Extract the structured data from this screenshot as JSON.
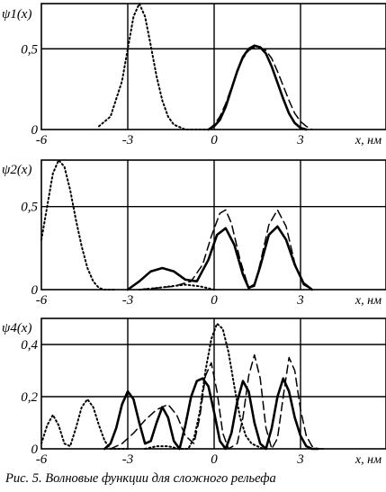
{
  "caption": "Рис. 5. Волновые функции для сложного рельефа",
  "chart_data": [
    {
      "type": "line",
      "ylabel": "ψ1(x)",
      "xlabel": "x, нм",
      "xlim": [
        -6,
        6
      ],
      "ylim": [
        0,
        0.78
      ],
      "xticks": [
        -6,
        -3,
        0,
        3
      ],
      "xtick_labels": [
        "-6",
        "-3",
        "0",
        "3"
      ],
      "yticks": [
        0,
        0.5
      ],
      "ytick_labels": [
        "0",
        "0,5"
      ],
      "grid": true,
      "series": [
        {
          "style": "dotted",
          "x": [
            -4.0,
            -3.6,
            -3.2,
            -3.0,
            -2.8,
            -2.6,
            -2.4,
            -2.2,
            -2.0,
            -1.8,
            -1.6,
            -1.4,
            -1.0,
            -0.6,
            -0.2
          ],
          "y": [
            0.02,
            0.08,
            0.3,
            0.5,
            0.7,
            0.78,
            0.7,
            0.52,
            0.33,
            0.18,
            0.08,
            0.03,
            0.0,
            0.0,
            0.0
          ]
        },
        {
          "style": "solid",
          "x": [
            -0.2,
            0.0,
            0.2,
            0.4,
            0.6,
            0.8,
            1.0,
            1.2,
            1.4,
            1.6,
            1.8,
            2.0,
            2.2,
            2.4,
            2.6,
            2.8,
            3.0,
            3.2
          ],
          "y": [
            0.0,
            0.02,
            0.06,
            0.14,
            0.25,
            0.36,
            0.45,
            0.5,
            0.52,
            0.51,
            0.47,
            0.39,
            0.29,
            0.19,
            0.1,
            0.04,
            0.01,
            0.0
          ]
        },
        {
          "style": "dashed",
          "x": [
            -0.2,
            0.0,
            0.2,
            0.4,
            0.6,
            0.8,
            1.0,
            1.2,
            1.4,
            1.6,
            1.8,
            2.0,
            2.2,
            2.4,
            2.6,
            2.8,
            3.0,
            3.2,
            3.4
          ],
          "y": [
            0.0,
            0.03,
            0.08,
            0.16,
            0.26,
            0.36,
            0.44,
            0.49,
            0.51,
            0.51,
            0.49,
            0.44,
            0.36,
            0.27,
            0.18,
            0.1,
            0.05,
            0.02,
            0.0
          ]
        }
      ]
    },
    {
      "type": "line",
      "ylabel": "ψ2(x)",
      "xlabel": "x, нм",
      "xlim": [
        -6,
        6
      ],
      "ylim": [
        0,
        0.78
      ],
      "xticks": [
        -6,
        -3,
        0,
        3
      ],
      "xtick_labels": [
        "-6",
        "-3",
        "0",
        "3"
      ],
      "yticks": [
        0,
        0.5
      ],
      "ytick_labels": [
        "0",
        "0,5"
      ],
      "grid": true,
      "series": [
        {
          "style": "dotted",
          "x": [
            -6.0,
            -5.8,
            -5.6,
            -5.4,
            -5.2,
            -5.0,
            -4.8,
            -4.6,
            -4.4,
            -4.2,
            -4.0,
            -3.8,
            -3.6,
            -3.4
          ],
          "y": [
            0.3,
            0.5,
            0.7,
            0.78,
            0.74,
            0.6,
            0.42,
            0.26,
            0.13,
            0.05,
            0.01,
            0.0,
            0.0,
            0.0
          ]
        },
        {
          "style": "solid",
          "x": [
            -3.0,
            -2.6,
            -2.2,
            -1.8,
            -1.4,
            -1.0,
            -0.6,
            -0.2,
            0.1,
            0.4,
            0.7,
            1.0,
            1.2,
            1.4,
            1.6,
            1.9,
            2.2,
            2.5,
            2.8,
            3.1,
            3.4
          ],
          "y": [
            0.0,
            0.05,
            0.11,
            0.13,
            0.11,
            0.06,
            0.05,
            0.18,
            0.33,
            0.37,
            0.27,
            0.09,
            0.01,
            0.03,
            0.14,
            0.33,
            0.38,
            0.3,
            0.15,
            0.04,
            0.0
          ]
        },
        {
          "style": "dashed",
          "x": [
            -2.6,
            -2.0,
            -1.4,
            -0.8,
            -0.4,
            -0.1,
            0.2,
            0.4,
            0.6,
            0.9,
            1.2,
            1.4,
            1.6,
            1.9,
            2.2,
            2.5,
            2.8,
            3.1,
            3.4
          ],
          "y": [
            0.0,
            0.01,
            0.02,
            0.05,
            0.15,
            0.32,
            0.46,
            0.48,
            0.4,
            0.18,
            0.01,
            0.02,
            0.16,
            0.39,
            0.48,
            0.38,
            0.16,
            0.03,
            0.0
          ]
        },
        {
          "style": "dotted",
          "x": [
            -2.6,
            -2.0,
            -1.5,
            -1.0,
            -0.5,
            0.0
          ],
          "y": [
            0.0,
            0.01,
            0.02,
            0.03,
            0.02,
            0.0
          ]
        }
      ]
    },
    {
      "type": "line",
      "ylabel": "ψ4(x)",
      "xlabel": "x, нм",
      "xlim": [
        -6,
        6
      ],
      "ylim": [
        0,
        0.5
      ],
      "xticks": [
        -6,
        -3,
        0,
        3
      ],
      "xtick_labels": [
        "-6",
        "-3",
        "0",
        "3"
      ],
      "yticks": [
        0,
        0.2,
        0.4
      ],
      "ytick_labels": [
        "0",
        "0,2",
        "0,4"
      ],
      "grid": true,
      "series": [
        {
          "style": "dotted",
          "x": [
            -6.0,
            -5.8,
            -5.6,
            -5.4,
            -5.2,
            -5.0,
            -4.8,
            -4.6,
            -4.4,
            -4.2,
            -4.0,
            -3.8,
            -3.6,
            -3.4,
            -3.2,
            -3.0
          ],
          "y": [
            0.02,
            0.09,
            0.13,
            0.09,
            0.02,
            0.01,
            0.08,
            0.16,
            0.19,
            0.16,
            0.09,
            0.03,
            0.0,
            0.0,
            0.0,
            0.0
          ]
        },
        {
          "style": "solid",
          "x": [
            -3.8,
            -3.6,
            -3.4,
            -3.2,
            -3.0,
            -2.8,
            -2.6,
            -2.4,
            -2.2,
            -2.0,
            -1.8,
            -1.6,
            -1.4,
            -1.2,
            -1.0,
            -0.8,
            -0.6,
            -0.4,
            -0.2,
            0.0,
            0.2,
            0.4,
            0.6,
            0.8,
            1.0,
            1.2,
            1.4,
            1.6,
            1.8,
            2.0,
            2.2,
            2.4,
            2.6,
            2.8,
            3.0,
            3.2,
            3.4,
            3.6
          ],
          "y": [
            0.0,
            0.02,
            0.08,
            0.17,
            0.22,
            0.19,
            0.1,
            0.02,
            0.03,
            0.1,
            0.16,
            0.12,
            0.03,
            0.0,
            0.09,
            0.2,
            0.26,
            0.27,
            0.24,
            0.14,
            0.03,
            0.0,
            0.06,
            0.18,
            0.26,
            0.22,
            0.1,
            0.02,
            0.0,
            0.08,
            0.2,
            0.27,
            0.22,
            0.12,
            0.05,
            0.01,
            0.0,
            0.0
          ]
        },
        {
          "style": "dashed",
          "x": [
            -3.6,
            -3.2,
            -2.8,
            -2.4,
            -2.0,
            -1.6,
            -1.3,
            -1.0,
            -0.7,
            -0.5,
            -0.3,
            -0.1,
            0.1,
            0.3,
            0.5,
            0.8,
            1.0,
            1.2,
            1.4,
            1.6,
            1.8,
            2.0,
            2.2,
            2.4,
            2.6,
            2.8,
            3.0,
            3.2,
            3.4,
            3.6,
            3.8
          ],
          "y": [
            0.0,
            0.02,
            0.06,
            0.11,
            0.15,
            0.17,
            0.13,
            0.05,
            0.02,
            0.12,
            0.28,
            0.33,
            0.22,
            0.06,
            0.0,
            0.02,
            0.12,
            0.28,
            0.36,
            0.27,
            0.08,
            0.0,
            0.04,
            0.2,
            0.35,
            0.3,
            0.15,
            0.05,
            0.01,
            0.0,
            0.0
          ]
        },
        {
          "style": "dotted",
          "x": [
            -2.4,
            -2.0,
            -1.6,
            -1.2,
            -0.9,
            -0.7,
            -0.5,
            -0.3,
            -0.1,
            0.1,
            0.3,
            0.5,
            0.7,
            0.9,
            1.1,
            1.3,
            1.5,
            1.7
          ],
          "y": [
            0.0,
            0.01,
            0.01,
            0.0,
            0.0,
            0.04,
            0.14,
            0.3,
            0.42,
            0.48,
            0.46,
            0.37,
            0.24,
            0.12,
            0.05,
            0.02,
            0.01,
            0.0
          ]
        }
      ]
    }
  ]
}
